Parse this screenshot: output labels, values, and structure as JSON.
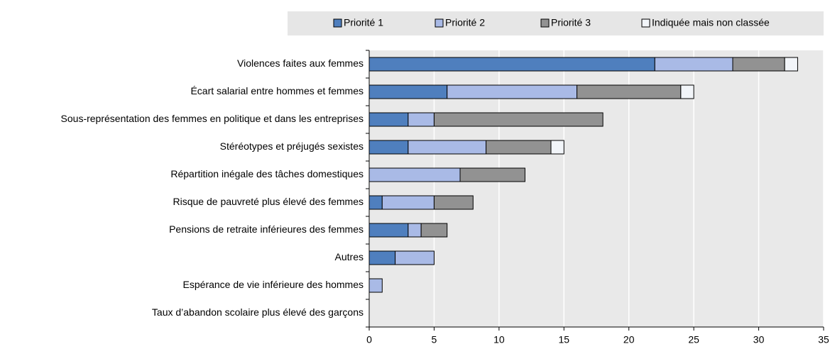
{
  "chart_data": {
    "type": "stacked_barh",
    "categories": [
      "Violences faites aux femmes",
      "Écart salarial entre hommes et femmes",
      "Sous-représentation des femmes en politique et dans les entreprises",
      "Stéréotypes et préjugés sexistes",
      "Répartition inégale des tâches domestiques",
      "Risque de pauvreté plus élevé des femmes",
      "Pensions de retraite inférieures des femmes",
      "Autres",
      "Espérance de vie inférieure des hommes",
      "Taux d’abandon scolaire plus élevé des garçons"
    ],
    "series": [
      {
        "name": "Priorité 1",
        "color": "#4f7fbe",
        "values": [
          22,
          6,
          3,
          3,
          0,
          1,
          3,
          2,
          0,
          0
        ]
      },
      {
        "name": "Priorité 2",
        "color": "#a9bae6",
        "values": [
          6,
          10,
          2,
          6,
          7,
          4,
          1,
          3,
          1,
          0
        ]
      },
      {
        "name": "Priorité 3",
        "color": "#929292",
        "values": [
          4,
          8,
          13,
          5,
          5,
          3,
          2,
          0,
          0,
          0
        ]
      },
      {
        "name": "Indiquée mais non classée",
        "color": "#f2f5f9",
        "values": [
          1,
          1,
          0,
          1,
          0,
          0,
          0,
          0,
          0,
          0
        ]
      }
    ],
    "xlim": [
      0,
      35
    ],
    "xticks": [
      0,
      5,
      10,
      15,
      20,
      25,
      30,
      35
    ],
    "grid": true,
    "legend": "top"
  }
}
